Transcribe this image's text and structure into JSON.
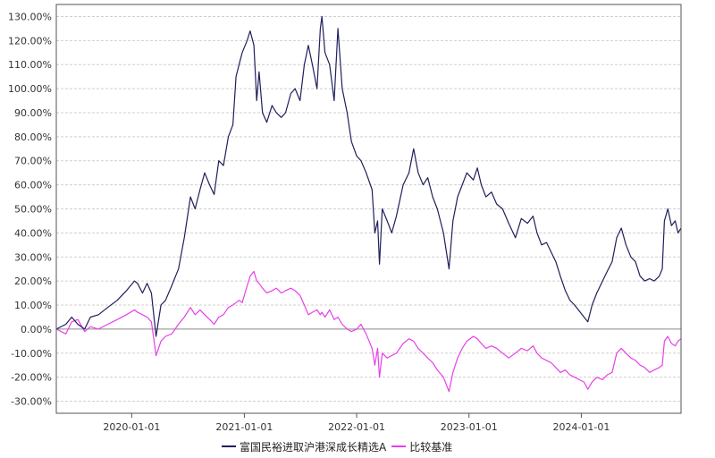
{
  "chart_data": {
    "type": "line",
    "title": "",
    "xlabel": "",
    "ylabel": "",
    "ylim": [
      -35,
      135
    ],
    "y_unit": "%",
    "yticks": [
      130,
      120,
      110,
      100,
      90,
      80,
      70,
      60,
      50,
      40,
      30,
      20,
      10,
      0,
      -10,
      -20,
      -30
    ],
    "ytick_labels": [
      "130.00%",
      "120.00%",
      "110.00%",
      "100.00%",
      "90.00%",
      "80.00%",
      "70.00%",
      "60.00%",
      "50.00%",
      "40.00%",
      "30.00%",
      "20.00%",
      "10.00%",
      "0.00%",
      "-10.00%",
      "-20.00%",
      "-30.00%"
    ],
    "xlim": [
      "2019-05-01",
      "2024-11-20"
    ],
    "xticks": [
      "2020-01-01",
      "2021-01-01",
      "2022-01-01",
      "2023-01-01",
      "2024-01-01"
    ],
    "grid": true,
    "legend_position": "bottom-center",
    "series": [
      {
        "name": "富国民裕进取沪港深成长精选A",
        "color": "#1f1f5c",
        "points": [
          [
            "2019-05-01",
            0
          ],
          [
            "2019-06-01",
            2
          ],
          [
            "2019-06-20",
            5
          ],
          [
            "2019-07-10",
            2
          ],
          [
            "2019-08-01",
            0
          ],
          [
            "2019-08-20",
            5
          ],
          [
            "2019-09-15",
            6
          ],
          [
            "2019-10-15",
            9
          ],
          [
            "2019-11-15",
            12
          ],
          [
            "2019-12-15",
            16
          ],
          [
            "2020-01-10",
            20
          ],
          [
            "2020-01-20",
            19
          ],
          [
            "2020-02-05",
            15
          ],
          [
            "2020-02-20",
            19
          ],
          [
            "2020-03-05",
            15
          ],
          [
            "2020-03-20",
            -3
          ],
          [
            "2020-04-05",
            10
          ],
          [
            "2020-04-20",
            12
          ],
          [
            "2020-05-10",
            18
          ],
          [
            "2020-06-01",
            25
          ],
          [
            "2020-06-20",
            38
          ],
          [
            "2020-07-10",
            55
          ],
          [
            "2020-07-25",
            50
          ],
          [
            "2020-08-10",
            58
          ],
          [
            "2020-08-25",
            65
          ],
          [
            "2020-09-10",
            60
          ],
          [
            "2020-09-25",
            56
          ],
          [
            "2020-10-10",
            70
          ],
          [
            "2020-10-25",
            68
          ],
          [
            "2020-11-10",
            80
          ],
          [
            "2020-11-25",
            85
          ],
          [
            "2020-12-05",
            105
          ],
          [
            "2020-12-15",
            110
          ],
          [
            "2020-12-25",
            115
          ],
          [
            "2021-01-10",
            120
          ],
          [
            "2021-01-20",
            124
          ],
          [
            "2021-02-01",
            118
          ],
          [
            "2021-02-10",
            95
          ],
          [
            "2021-02-18",
            107
          ],
          [
            "2021-03-01",
            90
          ],
          [
            "2021-03-15",
            86
          ],
          [
            "2021-04-01",
            93
          ],
          [
            "2021-04-15",
            90
          ],
          [
            "2021-05-01",
            88
          ],
          [
            "2021-05-15",
            90
          ],
          [
            "2021-06-01",
            98
          ],
          [
            "2021-06-15",
            100
          ],
          [
            "2021-07-01",
            95
          ],
          [
            "2021-07-15",
            110
          ],
          [
            "2021-07-28",
            118
          ],
          [
            "2021-08-10",
            110
          ],
          [
            "2021-08-25",
            100
          ],
          [
            "2021-09-05",
            125
          ],
          [
            "2021-09-10",
            130
          ],
          [
            "2021-09-20",
            115
          ],
          [
            "2021-10-05",
            110
          ],
          [
            "2021-10-20",
            95
          ],
          [
            "2021-11-01",
            125
          ],
          [
            "2021-11-15",
            100
          ],
          [
            "2021-12-01",
            90
          ],
          [
            "2021-12-15",
            78
          ],
          [
            "2022-01-01",
            72
          ],
          [
            "2022-01-15",
            70
          ],
          [
            "2022-02-01",
            65
          ],
          [
            "2022-02-20",
            58
          ],
          [
            "2022-03-01",
            40
          ],
          [
            "2022-03-10",
            45
          ],
          [
            "2022-03-16",
            27
          ],
          [
            "2022-03-25",
            50
          ],
          [
            "2022-04-10",
            45
          ],
          [
            "2022-04-25",
            40
          ],
          [
            "2022-05-10",
            47
          ],
          [
            "2022-06-01",
            60
          ],
          [
            "2022-06-20",
            65
          ],
          [
            "2022-07-05",
            75
          ],
          [
            "2022-07-20",
            65
          ],
          [
            "2022-08-05",
            60
          ],
          [
            "2022-08-20",
            63
          ],
          [
            "2022-09-05",
            55
          ],
          [
            "2022-09-20",
            50
          ],
          [
            "2022-10-10",
            40
          ],
          [
            "2022-10-28",
            25
          ],
          [
            "2022-11-10",
            45
          ],
          [
            "2022-11-25",
            55
          ],
          [
            "2022-12-10",
            60
          ],
          [
            "2022-12-25",
            65
          ],
          [
            "2023-01-15",
            62
          ],
          [
            "2023-01-28",
            67
          ],
          [
            "2023-02-10",
            60
          ],
          [
            "2023-02-25",
            55
          ],
          [
            "2023-03-15",
            57
          ],
          [
            "2023-04-01",
            52
          ],
          [
            "2023-04-20",
            50
          ],
          [
            "2023-05-10",
            44
          ],
          [
            "2023-06-01",
            38
          ],
          [
            "2023-06-20",
            46
          ],
          [
            "2023-07-10",
            44
          ],
          [
            "2023-07-28",
            47
          ],
          [
            "2023-08-10",
            40
          ],
          [
            "2023-08-25",
            35
          ],
          [
            "2023-09-10",
            36
          ],
          [
            "2023-09-25",
            32
          ],
          [
            "2023-10-10",
            28
          ],
          [
            "2023-10-25",
            22
          ],
          [
            "2023-11-10",
            16
          ],
          [
            "2023-11-25",
            12
          ],
          [
            "2023-12-10",
            10
          ],
          [
            "2024-01-10",
            5
          ],
          [
            "2024-01-22",
            3
          ],
          [
            "2024-02-05",
            10
          ],
          [
            "2024-02-20",
            15
          ],
          [
            "2024-03-10",
            20
          ],
          [
            "2024-03-25",
            24
          ],
          [
            "2024-04-10",
            28
          ],
          [
            "2024-04-25",
            38
          ],
          [
            "2024-05-10",
            42
          ],
          [
            "2024-05-25",
            35
          ],
          [
            "2024-06-10",
            30
          ],
          [
            "2024-06-25",
            28
          ],
          [
            "2024-07-10",
            22
          ],
          [
            "2024-07-25",
            20
          ],
          [
            "2024-08-10",
            21
          ],
          [
            "2024-08-25",
            20
          ],
          [
            "2024-09-10",
            22
          ],
          [
            "2024-09-20",
            25
          ],
          [
            "2024-09-27",
            45
          ],
          [
            "2024-10-08",
            50
          ],
          [
            "2024-10-20",
            43
          ],
          [
            "2024-11-01",
            45
          ],
          [
            "2024-11-10",
            40
          ],
          [
            "2024-11-20",
            42
          ]
        ]
      },
      {
        "name": "比较基准",
        "color": "#e83fe8",
        "points": [
          [
            "2019-05-01",
            0
          ],
          [
            "2019-06-01",
            -2
          ],
          [
            "2019-06-20",
            3
          ],
          [
            "2019-07-10",
            4
          ],
          [
            "2019-08-01",
            -1
          ],
          [
            "2019-08-20",
            1
          ],
          [
            "2019-09-15",
            0
          ],
          [
            "2019-10-15",
            2
          ],
          [
            "2019-11-15",
            4
          ],
          [
            "2019-12-15",
            6
          ],
          [
            "2020-01-10",
            8
          ],
          [
            "2020-01-20",
            7
          ],
          [
            "2020-02-05",
            6
          ],
          [
            "2020-02-20",
            5
          ],
          [
            "2020-03-05",
            3
          ],
          [
            "2020-03-20",
            -11
          ],
          [
            "2020-04-05",
            -5
          ],
          [
            "2020-04-20",
            -3
          ],
          [
            "2020-05-10",
            -2
          ],
          [
            "2020-06-01",
            2
          ],
          [
            "2020-06-20",
            5
          ],
          [
            "2020-07-10",
            9
          ],
          [
            "2020-07-25",
            6
          ],
          [
            "2020-08-10",
            8
          ],
          [
            "2020-08-25",
            6
          ],
          [
            "2020-09-10",
            4
          ],
          [
            "2020-09-25",
            2
          ],
          [
            "2020-10-10",
            5
          ],
          [
            "2020-10-25",
            6
          ],
          [
            "2020-11-10",
            9
          ],
          [
            "2020-11-25",
            10
          ],
          [
            "2020-12-05",
            11
          ],
          [
            "2020-12-15",
            12
          ],
          [
            "2020-12-25",
            11
          ],
          [
            "2021-01-10",
            18
          ],
          [
            "2021-01-20",
            22
          ],
          [
            "2021-02-01",
            24
          ],
          [
            "2021-02-10",
            20
          ],
          [
            "2021-02-18",
            19
          ],
          [
            "2021-03-01",
            17
          ],
          [
            "2021-03-15",
            15
          ],
          [
            "2021-04-01",
            16
          ],
          [
            "2021-04-15",
            17
          ],
          [
            "2021-05-01",
            15
          ],
          [
            "2021-05-15",
            16
          ],
          [
            "2021-06-01",
            17
          ],
          [
            "2021-06-15",
            16
          ],
          [
            "2021-07-01",
            14
          ],
          [
            "2021-07-15",
            10
          ],
          [
            "2021-07-28",
            6
          ],
          [
            "2021-08-10",
            7
          ],
          [
            "2021-08-25",
            8
          ],
          [
            "2021-09-05",
            6
          ],
          [
            "2021-09-10",
            7
          ],
          [
            "2021-09-20",
            5
          ],
          [
            "2021-10-05",
            8
          ],
          [
            "2021-10-20",
            4
          ],
          [
            "2021-11-01",
            5
          ],
          [
            "2021-11-15",
            2
          ],
          [
            "2021-12-01",
            0
          ],
          [
            "2021-12-15",
            -1
          ],
          [
            "2022-01-01",
            0
          ],
          [
            "2022-01-15",
            2
          ],
          [
            "2022-02-01",
            -2
          ],
          [
            "2022-02-20",
            -8
          ],
          [
            "2022-03-01",
            -15
          ],
          [
            "2022-03-10",
            -8
          ],
          [
            "2022-03-16",
            -20
          ],
          [
            "2022-03-25",
            -10
          ],
          [
            "2022-04-10",
            -12
          ],
          [
            "2022-04-25",
            -11
          ],
          [
            "2022-05-10",
            -10
          ],
          [
            "2022-06-01",
            -6
          ],
          [
            "2022-06-20",
            -4
          ],
          [
            "2022-07-05",
            -5
          ],
          [
            "2022-07-20",
            -8
          ],
          [
            "2022-08-05",
            -10
          ],
          [
            "2022-08-20",
            -12
          ],
          [
            "2022-09-05",
            -14
          ],
          [
            "2022-09-20",
            -17
          ],
          [
            "2022-10-10",
            -20
          ],
          [
            "2022-10-28",
            -26
          ],
          [
            "2022-11-10",
            -18
          ],
          [
            "2022-11-25",
            -12
          ],
          [
            "2022-12-10",
            -8
          ],
          [
            "2022-12-25",
            -5
          ],
          [
            "2023-01-15",
            -3
          ],
          [
            "2023-01-28",
            -4
          ],
          [
            "2023-02-10",
            -6
          ],
          [
            "2023-02-25",
            -8
          ],
          [
            "2023-03-15",
            -7
          ],
          [
            "2023-04-01",
            -8
          ],
          [
            "2023-04-20",
            -10
          ],
          [
            "2023-05-10",
            -12
          ],
          [
            "2023-06-01",
            -10
          ],
          [
            "2023-06-20",
            -8
          ],
          [
            "2023-07-10",
            -9
          ],
          [
            "2023-07-28",
            -7
          ],
          [
            "2023-08-10",
            -10
          ],
          [
            "2023-08-25",
            -12
          ],
          [
            "2023-09-10",
            -13
          ],
          [
            "2023-09-25",
            -14
          ],
          [
            "2023-10-10",
            -16
          ],
          [
            "2023-10-25",
            -18
          ],
          [
            "2023-11-10",
            -17
          ],
          [
            "2023-11-25",
            -19
          ],
          [
            "2023-12-10",
            -20
          ],
          [
            "2024-01-10",
            -22
          ],
          [
            "2024-01-22",
            -25
          ],
          [
            "2024-02-05",
            -22
          ],
          [
            "2024-02-20",
            -20
          ],
          [
            "2024-03-10",
            -21
          ],
          [
            "2024-03-25",
            -19
          ],
          [
            "2024-04-10",
            -18
          ],
          [
            "2024-04-25",
            -10
          ],
          [
            "2024-05-10",
            -8
          ],
          [
            "2024-05-25",
            -10
          ],
          [
            "2024-06-10",
            -12
          ],
          [
            "2024-06-25",
            -13
          ],
          [
            "2024-07-10",
            -15
          ],
          [
            "2024-07-25",
            -16
          ],
          [
            "2024-08-10",
            -18
          ],
          [
            "2024-08-25",
            -17
          ],
          [
            "2024-09-10",
            -16
          ],
          [
            "2024-09-20",
            -15
          ],
          [
            "2024-09-27",
            -5
          ],
          [
            "2024-10-08",
            -3
          ],
          [
            "2024-10-20",
            -6
          ],
          [
            "2024-11-01",
            -7
          ],
          [
            "2024-11-10",
            -5
          ],
          [
            "2024-11-20",
            -4
          ]
        ]
      }
    ]
  }
}
